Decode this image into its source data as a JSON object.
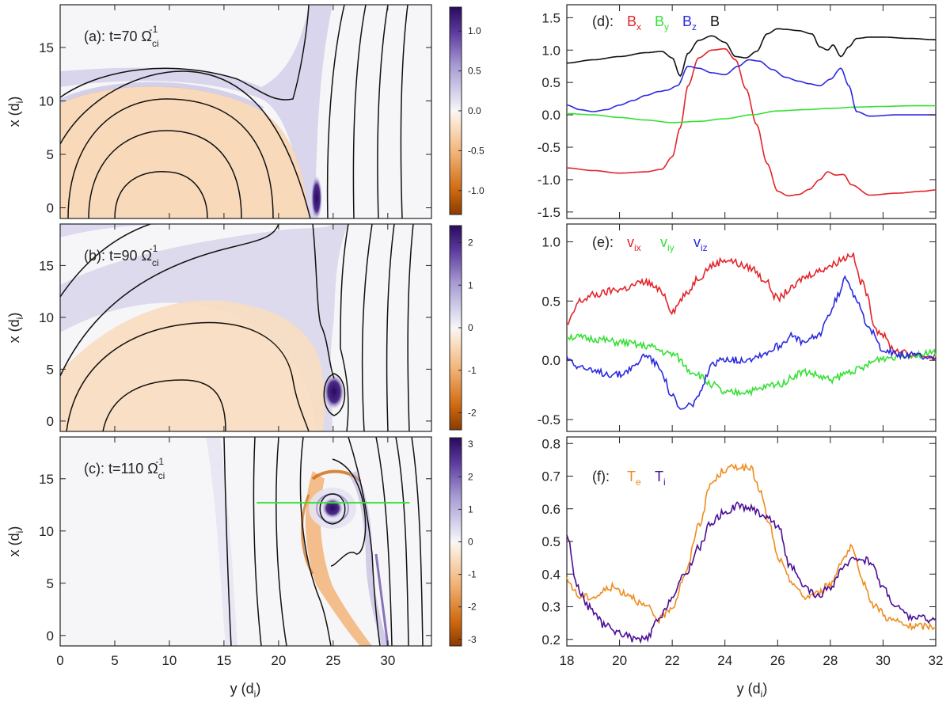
{
  "chart_data": [
    {
      "id": "a",
      "type": "heatmap",
      "title": "(a): t=70 Ω",
      "title_sub": "ci",
      "title_sup": "-1",
      "xlabel": "",
      "ylabel": "x (d",
      "ylabel_sub": "i",
      "ylabel_close": ")",
      "xlim": [
        0,
        34
      ],
      "ylim": [
        -1,
        19
      ],
      "x_ticks": [
        0,
        5,
        10,
        15,
        20,
        25,
        30
      ],
      "y_ticks": [
        0,
        5,
        10,
        15
      ],
      "colorbar": {
        "range": [
          -1.3,
          1.3
        ],
        "ticks": [
          -1.0,
          -0.5,
          0.0,
          0.5,
          1.0
        ],
        "tick_labels": [
          "-1.0",
          "-0.5",
          "0.0",
          "0.5",
          "1.0"
        ]
      }
    },
    {
      "id": "b",
      "type": "heatmap",
      "title": "(b): t=90 Ω",
      "title_sub": "ci",
      "title_sup": "-1",
      "xlabel": "",
      "ylabel": "x (d",
      "ylabel_sub": "i",
      "ylabel_close": ")",
      "xlim": [
        0,
        34
      ],
      "ylim": [
        -1,
        19
      ],
      "x_ticks": [
        0,
        5,
        10,
        15,
        20,
        25,
        30
      ],
      "y_ticks": [
        0,
        5,
        10,
        15
      ],
      "colorbar": {
        "range": [
          -2.4,
          2.4
        ],
        "ticks": [
          -2,
          -1,
          0,
          1,
          2
        ],
        "tick_labels": [
          "-2",
          "-1",
          "0",
          "1",
          "2"
        ]
      }
    },
    {
      "id": "c",
      "type": "heatmap",
      "title": "(c): t=110 Ω",
      "title_sub": "ci",
      "title_sup": "-1",
      "xlabel": "y (d",
      "xlabel_sub": "i",
      "xlabel_close": ")",
      "ylabel": "x (d",
      "ylabel_sub": "i",
      "ylabel_close": ")",
      "xlim": [
        0,
        34
      ],
      "ylim": [
        -1,
        19
      ],
      "x_ticks": [
        0,
        5,
        10,
        15,
        20,
        25,
        30
      ],
      "x_tick_labels": [
        "0",
        "5",
        "10",
        "15",
        "20",
        "25",
        "30"
      ],
      "y_ticks": [
        0,
        5,
        10,
        15
      ],
      "cut_line": {
        "x_start": 18,
        "x_end": 32,
        "y": 12.7,
        "color": "#35e035"
      },
      "colorbar": {
        "range": [
          -3.2,
          3.2
        ],
        "ticks": [
          -3,
          -2,
          -1,
          0,
          1,
          2,
          3
        ],
        "tick_labels": [
          "-3",
          "-2",
          "-1",
          "0",
          "1",
          "2",
          "3"
        ]
      }
    },
    {
      "id": "d",
      "type": "line",
      "title": "(d):",
      "xlim": [
        18,
        32
      ],
      "ylim": [
        -1.6,
        1.7
      ],
      "y_ticks": [
        -1.5,
        -1.0,
        -0.5,
        0.0,
        0.5,
        1.0,
        1.5
      ],
      "y_tick_labels": [
        "-1.5",
        "-1.0",
        "-0.5",
        "0.0",
        "0.5",
        "1.0",
        "1.5"
      ],
      "x_ticks": [
        18,
        20,
        22,
        24,
        26,
        28,
        30,
        32
      ],
      "series": [
        {
          "name": "B",
          "sub": "x",
          "color": "#e3242b",
          "x": [
            18,
            19,
            20,
            21,
            21.6,
            22,
            22.3,
            22.6,
            23,
            23.5,
            24,
            24.4,
            24.8,
            25.2,
            25.6,
            26,
            26.4,
            26.8,
            27.2,
            27.6,
            27.9,
            28.2,
            28.5,
            28.8,
            29.5,
            30.5,
            31.5,
            32
          ],
          "values": [
            -0.82,
            -0.86,
            -0.9,
            -0.88,
            -0.84,
            -0.65,
            -0.2,
            0.45,
            0.88,
            1.0,
            1.02,
            0.85,
            0.4,
            -0.15,
            -0.75,
            -1.18,
            -1.25,
            -1.23,
            -1.15,
            -1.0,
            -0.88,
            -0.93,
            -0.92,
            -1.08,
            -1.24,
            -1.21,
            -1.18,
            -1.16
          ]
        },
        {
          "name": "B",
          "sub": "y",
          "color": "#35e035",
          "x": [
            18,
            19,
            20,
            21,
            22,
            23,
            24,
            25,
            26,
            27,
            28,
            29,
            30,
            31,
            32
          ],
          "values": [
            0.02,
            0.0,
            -0.04,
            -0.08,
            -0.12,
            -0.1,
            -0.06,
            0.0,
            0.06,
            0.08,
            0.1,
            0.12,
            0.13,
            0.14,
            0.14
          ]
        },
        {
          "name": "B",
          "sub": "z",
          "color": "#2a2ae0",
          "x": [
            18,
            18.5,
            19,
            19.5,
            20,
            20.5,
            21,
            21.5,
            21.8,
            22.2,
            22.6,
            23,
            23.5,
            24,
            24.5,
            24.9,
            25.3,
            25.8,
            26.3,
            26.8,
            27.2,
            27.6,
            28,
            28.4,
            28.7,
            29,
            29.5,
            30.5,
            31.5,
            32
          ],
          "values": [
            0.15,
            0.08,
            0.05,
            0.08,
            0.15,
            0.22,
            0.3,
            0.36,
            0.38,
            0.45,
            0.75,
            0.72,
            0.65,
            0.62,
            0.75,
            0.85,
            0.83,
            0.7,
            0.58,
            0.52,
            0.48,
            0.45,
            0.55,
            0.72,
            0.45,
            0.05,
            -0.02,
            0.0,
            0.0,
            0.0
          ]
        },
        {
          "name": "B",
          "sub": "",
          "color": "#111111",
          "x": [
            18,
            19,
            20,
            21,
            21.6,
            22,
            22.3,
            22.6,
            23,
            23.5,
            24,
            24.4,
            24.8,
            25.2,
            25.6,
            26,
            26.3,
            26.8,
            27.3,
            27.6,
            27.9,
            28.1,
            28.4,
            28.7,
            29,
            29.5,
            30,
            31,
            32
          ],
          "values": [
            0.8,
            0.85,
            0.9,
            0.96,
            0.98,
            0.88,
            0.6,
            0.95,
            1.15,
            1.22,
            1.12,
            0.9,
            0.88,
            0.98,
            1.25,
            1.33,
            1.32,
            1.3,
            1.25,
            1.05,
            1.0,
            1.08,
            0.9,
            1.05,
            1.18,
            1.2,
            1.2,
            1.18,
            1.16
          ]
        }
      ]
    },
    {
      "id": "e",
      "type": "line",
      "title": "(e):",
      "xlim": [
        18,
        32
      ],
      "ylim": [
        -0.6,
        1.15
      ],
      "y_ticks": [
        -0.5,
        0.0,
        0.5,
        1.0
      ],
      "y_tick_labels": [
        "-0.5",
        "0.0",
        "0.5",
        "1.0"
      ],
      "x_ticks": [
        18,
        20,
        22,
        24,
        26,
        28,
        30,
        32
      ],
      "series": [
        {
          "name": "v",
          "sub": "ix",
          "color": "#e3242b",
          "x": [
            18,
            18.5,
            19,
            20,
            21,
            21.6,
            22,
            22.5,
            23,
            23.5,
            24,
            25,
            25.5,
            26,
            26.5,
            27,
            27.5,
            28,
            28.5,
            28.8,
            29.2,
            29.8,
            30.5,
            31,
            32
          ],
          "values": [
            0.3,
            0.5,
            0.55,
            0.6,
            0.66,
            0.58,
            0.42,
            0.55,
            0.7,
            0.8,
            0.85,
            0.78,
            0.68,
            0.52,
            0.6,
            0.7,
            0.75,
            0.8,
            0.86,
            0.9,
            0.65,
            0.25,
            0.08,
            0.05,
            0.03
          ]
        },
        {
          "name": "v",
          "sub": "iy",
          "color": "#35e035",
          "x": [
            18,
            19,
            20,
            21,
            22,
            22.8,
            23.5,
            24,
            25,
            26,
            27,
            28,
            29,
            30,
            31,
            32
          ],
          "values": [
            0.2,
            0.18,
            0.15,
            0.12,
            0.05,
            -0.1,
            -0.2,
            -0.28,
            -0.26,
            -0.2,
            -0.1,
            -0.16,
            -0.08,
            0.02,
            0.05,
            0.06
          ]
        },
        {
          "name": "v",
          "sub": "iz",
          "color": "#2a2ae0",
          "x": [
            18,
            18.5,
            19,
            20,
            20.5,
            21,
            21.5,
            22,
            22.3,
            22.7,
            23,
            23.5,
            24,
            24.5,
            25,
            25.5,
            26,
            26.5,
            27,
            27.5,
            28,
            28.3,
            28.6,
            29,
            29.5,
            30,
            30.5,
            31,
            32
          ],
          "values": [
            0.02,
            -0.05,
            -0.1,
            -0.12,
            -0.06,
            0.05,
            -0.05,
            -0.3,
            -0.42,
            -0.38,
            -0.3,
            -0.05,
            0.02,
            0.0,
            0.02,
            0.06,
            0.12,
            0.2,
            0.15,
            0.2,
            0.4,
            0.55,
            0.7,
            0.52,
            0.25,
            0.1,
            0.05,
            0.04,
            0.03
          ]
        }
      ]
    },
    {
      "id": "f",
      "type": "line",
      "title": "(f):",
      "xlabel": "y (d",
      "xlabel_sub": "i",
      "xlabel_close": ")",
      "xlim": [
        18,
        32
      ],
      "ylim": [
        0.18,
        0.82
      ],
      "y_ticks": [
        0.2,
        0.3,
        0.4,
        0.5,
        0.6,
        0.7,
        0.8
      ],
      "y_tick_labels": [
        "0.2",
        "0.3",
        "0.4",
        "0.5",
        "0.6",
        "0.7",
        "0.8"
      ],
      "x_ticks": [
        18,
        20,
        22,
        24,
        26,
        28,
        30,
        32
      ],
      "x_tick_labels": [
        "18",
        "20",
        "22",
        "24",
        "26",
        "28",
        "30",
        "32"
      ],
      "series": [
        {
          "name": "T",
          "sub": "e",
          "color": "#f08c1e",
          "x": [
            18,
            18.5,
            19,
            19.7,
            20.3,
            21,
            21.5,
            22,
            22.5,
            23,
            23.5,
            24,
            24.5,
            25,
            25.3,
            25.7,
            26,
            26.5,
            27,
            27.5,
            28,
            28.5,
            28.8,
            29.2,
            29.7,
            30.3,
            31,
            32
          ],
          "values": [
            0.38,
            0.33,
            0.33,
            0.36,
            0.34,
            0.3,
            0.26,
            0.3,
            0.4,
            0.55,
            0.68,
            0.72,
            0.73,
            0.72,
            0.66,
            0.55,
            0.45,
            0.38,
            0.33,
            0.34,
            0.37,
            0.45,
            0.48,
            0.38,
            0.3,
            0.26,
            0.24,
            0.24
          ]
        },
        {
          "name": "T",
          "sub": "i",
          "color": "#4b0f96",
          "x": [
            18,
            18.4,
            18.8,
            19.5,
            20,
            20.6,
            21,
            21.5,
            22,
            22.5,
            23,
            23.5,
            24,
            24.5,
            25,
            25.5,
            26,
            26.5,
            27,
            27.5,
            28,
            28.5,
            29,
            29.5,
            30,
            30.5,
            31,
            32
          ],
          "values": [
            0.52,
            0.36,
            0.3,
            0.24,
            0.22,
            0.2,
            0.2,
            0.26,
            0.33,
            0.4,
            0.48,
            0.56,
            0.59,
            0.61,
            0.6,
            0.58,
            0.55,
            0.42,
            0.36,
            0.33,
            0.36,
            0.42,
            0.45,
            0.44,
            0.36,
            0.3,
            0.27,
            0.26
          ]
        }
      ]
    }
  ]
}
